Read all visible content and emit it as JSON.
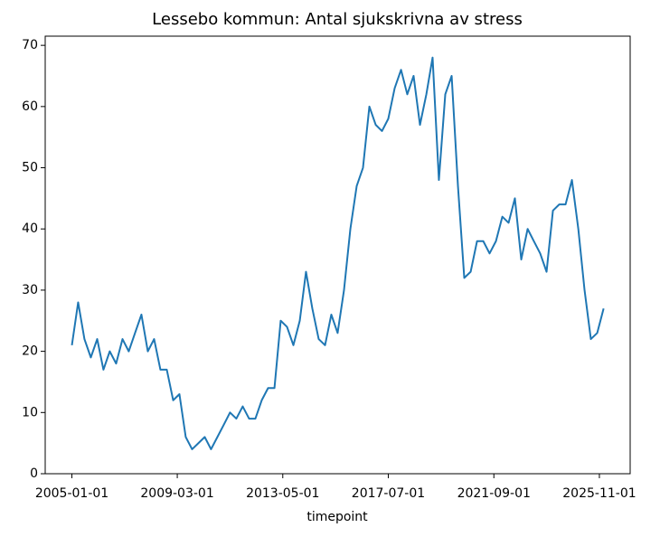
{
  "chart_data": {
    "type": "line",
    "title": "Lessebo kommun: Antal sjukskrivna av stress",
    "x_label": "timepoint",
    "x": [
      "2005-01-01",
      "2005-04-01",
      "2005-07-01",
      "2005-10-01",
      "2006-01-01",
      "2006-04-01",
      "2006-07-01",
      "2006-10-01",
      "2007-01-01",
      "2007-04-01",
      "2007-07-01",
      "2007-10-01",
      "2008-01-01",
      "2008-04-01",
      "2008-07-01",
      "2008-10-01",
      "2009-01-01",
      "2009-04-01",
      "2009-07-01",
      "2009-10-01",
      "2010-01-01",
      "2010-04-01",
      "2010-07-01",
      "2010-10-01",
      "2011-01-01",
      "2011-04-01",
      "2011-07-01",
      "2011-10-01",
      "2012-01-01",
      "2012-04-01",
      "2012-07-01",
      "2012-10-01",
      "2013-01-01",
      "2013-04-01",
      "2013-07-01",
      "2013-10-01",
      "2014-01-01",
      "2014-04-01",
      "2014-07-01",
      "2014-10-01",
      "2015-01-01",
      "2015-04-01",
      "2015-07-01",
      "2015-10-01",
      "2016-01-01",
      "2016-04-01",
      "2016-07-01",
      "2016-10-01",
      "2017-01-01",
      "2017-04-01",
      "2017-07-01",
      "2017-10-01",
      "2018-01-01",
      "2018-04-01",
      "2018-07-01",
      "2018-10-01",
      "2019-01-01",
      "2019-04-01",
      "2019-07-01",
      "2019-10-01",
      "2020-01-01",
      "2020-04-01",
      "2020-07-01",
      "2020-10-01",
      "2021-01-01",
      "2021-04-01",
      "2021-07-01",
      "2021-10-01",
      "2022-01-01",
      "2022-04-01",
      "2022-07-01",
      "2022-10-01",
      "2023-01-01",
      "2023-04-01",
      "2023-07-01",
      "2023-10-01",
      "2024-01-01",
      "2024-04-01",
      "2024-07-01",
      "2024-10-01",
      "2025-01-01",
      "2025-04-01",
      "2025-07-01",
      "2025-10-01",
      "2026-01-01"
    ],
    "series": [
      {
        "name": "Lessebo kommun",
        "color": "#1f77b4",
        "values": [
          21,
          28,
          22,
          19,
          22,
          17,
          20,
          18,
          22,
          20,
          23,
          26,
          20,
          22,
          17,
          17,
          12,
          13,
          6,
          4,
          5,
          6,
          4,
          6,
          8,
          10,
          9,
          11,
          9,
          9,
          12,
          14,
          14,
          25,
          24,
          21,
          25,
          33,
          27,
          22,
          21,
          26,
          23,
          30,
          40,
          47,
          50,
          60,
          57,
          56,
          58,
          63,
          66,
          62,
          65,
          57,
          62,
          68,
          48,
          62,
          65,
          47,
          32,
          33,
          38,
          38,
          36,
          38,
          42,
          41,
          45,
          35,
          40,
          38,
          36,
          33,
          43,
          44,
          44,
          48,
          40,
          30,
          22,
          23,
          27
        ]
      }
    ],
    "xlim": [
      "2003-12-13",
      "2027-01-19"
    ],
    "ylim": [
      0,
      71.5
    ],
    "xticks": [
      "2005-01-01",
      "2009-03-01",
      "2013-05-01",
      "2017-07-01",
      "2021-09-01",
      "2025-11-01"
    ],
    "yticks": [
      0,
      10,
      20,
      30,
      40,
      50,
      60,
      70
    ],
    "grid": false
  }
}
